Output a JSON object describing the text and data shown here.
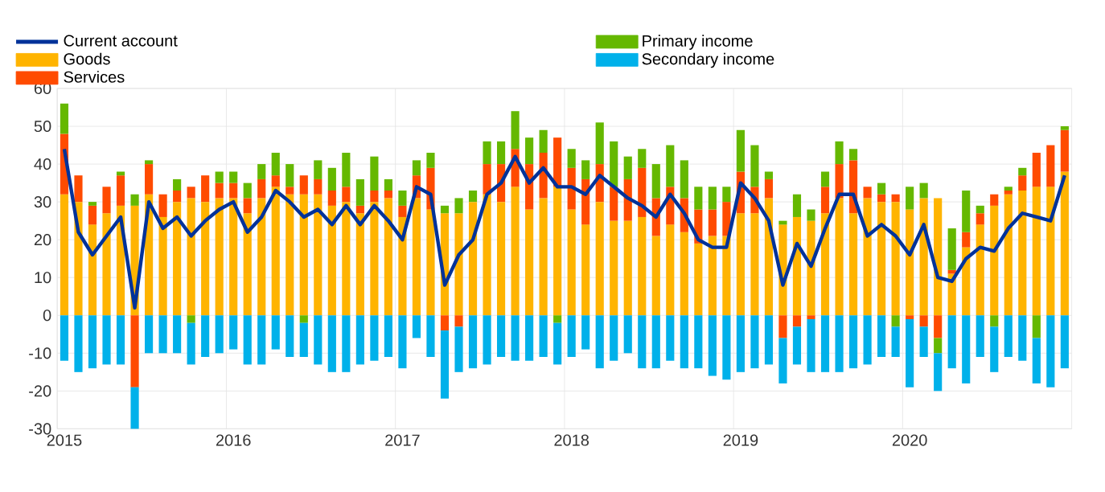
{
  "chart_data": {
    "type": "bar",
    "stacked": true,
    "grid": true,
    "legend": "top left",
    "categories": [
      "2015",
      null,
      null,
      null,
      null,
      null,
      null,
      null,
      null,
      null,
      null,
      null,
      "2016",
      null,
      null,
      null,
      null,
      null,
      null,
      null,
      null,
      null,
      null,
      null,
      "2017",
      null,
      null,
      null,
      null,
      null,
      null,
      null,
      null,
      null,
      null,
      null,
      "2018",
      null,
      null,
      null,
      null,
      null,
      null,
      null,
      null,
      null,
      null,
      null,
      "2019",
      null,
      null,
      null,
      null,
      null,
      null,
      null,
      null,
      null,
      null,
      null,
      "2020",
      null,
      null,
      null,
      null,
      null,
      null,
      null,
      null,
      null,
      null,
      null
    ],
    "ylim": [
      -30,
      60
    ],
    "yticks": [
      -30,
      -20,
      -10,
      0,
      10,
      20,
      30,
      40,
      50,
      60
    ],
    "series": [
      {
        "name": "Current account",
        "type": "line",
        "color": "#003299",
        "values": [
          44,
          22,
          16,
          21,
          26,
          2,
          30,
          23,
          26,
          21,
          25,
          28,
          30,
          22,
          26,
          33,
          30,
          26,
          28,
          24,
          29,
          24,
          29,
          25,
          20,
          34,
          32,
          8,
          16,
          20,
          32,
          35,
          42,
          35,
          39,
          34,
          34,
          32,
          37,
          34,
          31,
          29,
          26,
          32,
          27,
          20,
          18,
          18,
          35,
          31,
          25,
          8,
          19,
          13,
          23,
          32,
          32,
          21,
          24,
          21,
          16,
          24,
          10,
          9,
          15,
          18,
          17,
          23,
          27,
          26,
          25,
          37
        ]
      },
      {
        "name": "Goods",
        "color": "#ffb400",
        "values": [
          32,
          30,
          24,
          27,
          29,
          29,
          32,
          26,
          30,
          31,
          30,
          31,
          31,
          27,
          31,
          34,
          32,
          32,
          32,
          29,
          30,
          27,
          30,
          31,
          26,
          31,
          28,
          27,
          27,
          30,
          32,
          30,
          34,
          28,
          31,
          34,
          28,
          24,
          30,
          25,
          25,
          26,
          21,
          24,
          22,
          19,
          21,
          21,
          27,
          27,
          31,
          24,
          26,
          25,
          27,
          31,
          27,
          31,
          30,
          30,
          28,
          31,
          31,
          11,
          18,
          24,
          29,
          32,
          33,
          34,
          34,
          38
        ]
      },
      {
        "name": "Services",
        "color": "#ff4b00",
        "values": [
          16,
          7,
          5,
          7,
          8,
          -19,
          8,
          6,
          3,
          3,
          7,
          4,
          4,
          4,
          5,
          3,
          2,
          5,
          4,
          4,
          4,
          2,
          3,
          2,
          3,
          6,
          11,
          -4,
          -3,
          0,
          8,
          10,
          10,
          12,
          12,
          13,
          11,
          12,
          10,
          9,
          11,
          13,
          10,
          10,
          9,
          9,
          7,
          9,
          11,
          7,
          5,
          -6,
          -3,
          -1,
          7,
          9,
          14,
          3,
          2,
          2,
          -1,
          -3,
          -6,
          1,
          4,
          3,
          3,
          1,
          4,
          9,
          11,
          11
        ]
      },
      {
        "name": "Primary income",
        "color": "#65b800",
        "values": [
          8,
          0,
          1,
          0,
          1,
          3,
          1,
          0,
          3,
          -2,
          0,
          3,
          3,
          4,
          4,
          6,
          6,
          -2,
          5,
          6,
          9,
          7,
          9,
          3,
          4,
          4,
          4,
          2,
          4,
          3,
          6,
          6,
          10,
          7,
          6,
          -2,
          5,
          5,
          11,
          12,
          6,
          5,
          9,
          11,
          10,
          6,
          6,
          4,
          11,
          11,
          2,
          1,
          6,
          3,
          4,
          6,
          3,
          0,
          3,
          -3,
          6,
          4,
          -4,
          11,
          11,
          2,
          -3,
          1,
          2,
          -6,
          0,
          1
        ]
      },
      {
        "name": "Secondary income",
        "color": "#00b1ea",
        "values": [
          -12,
          -15,
          -14,
          -13,
          -13,
          -11,
          -10,
          -10,
          -10,
          -11,
          -11,
          -10,
          -9,
          -13,
          -13,
          -9,
          -11,
          -9,
          -13,
          -15,
          -15,
          -13,
          -12,
          -11,
          -14,
          -6,
          -11,
          -18,
          -12,
          -14,
          -13,
          -11,
          -12,
          -12,
          -11,
          -11,
          -11,
          -9,
          -14,
          -12,
          -10,
          -14,
          -14,
          -12,
          -14,
          -14,
          -16,
          -17,
          -15,
          -14,
          -13,
          -12,
          -10,
          -14,
          -15,
          -15,
          -14,
          -13,
          -11,
          -8,
          -18,
          -8,
          -10,
          -14,
          -18,
          -11,
          -12,
          -11,
          -12,
          -12,
          -19,
          -14
        ]
      }
    ]
  }
}
